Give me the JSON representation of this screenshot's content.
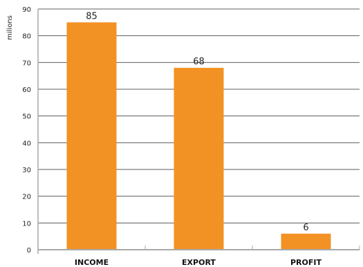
{
  "chart_data": {
    "type": "bar",
    "title": "",
    "xlabel": "",
    "ylabel": "milions",
    "categories": [
      "INCOME",
      "EXPORT",
      "PROFIT"
    ],
    "values": [
      85,
      68,
      6
    ],
    "data_labels": [
      "85",
      "68",
      "6"
    ],
    "ylim": [
      0,
      90
    ],
    "yticks": [
      0,
      10,
      20,
      30,
      40,
      50,
      60,
      70,
      80,
      90
    ],
    "grid": true,
    "legend": "none",
    "colors": {
      "bar": "#f39224",
      "grid": "#5c5c5c",
      "axis": "#a8a8a8"
    }
  }
}
